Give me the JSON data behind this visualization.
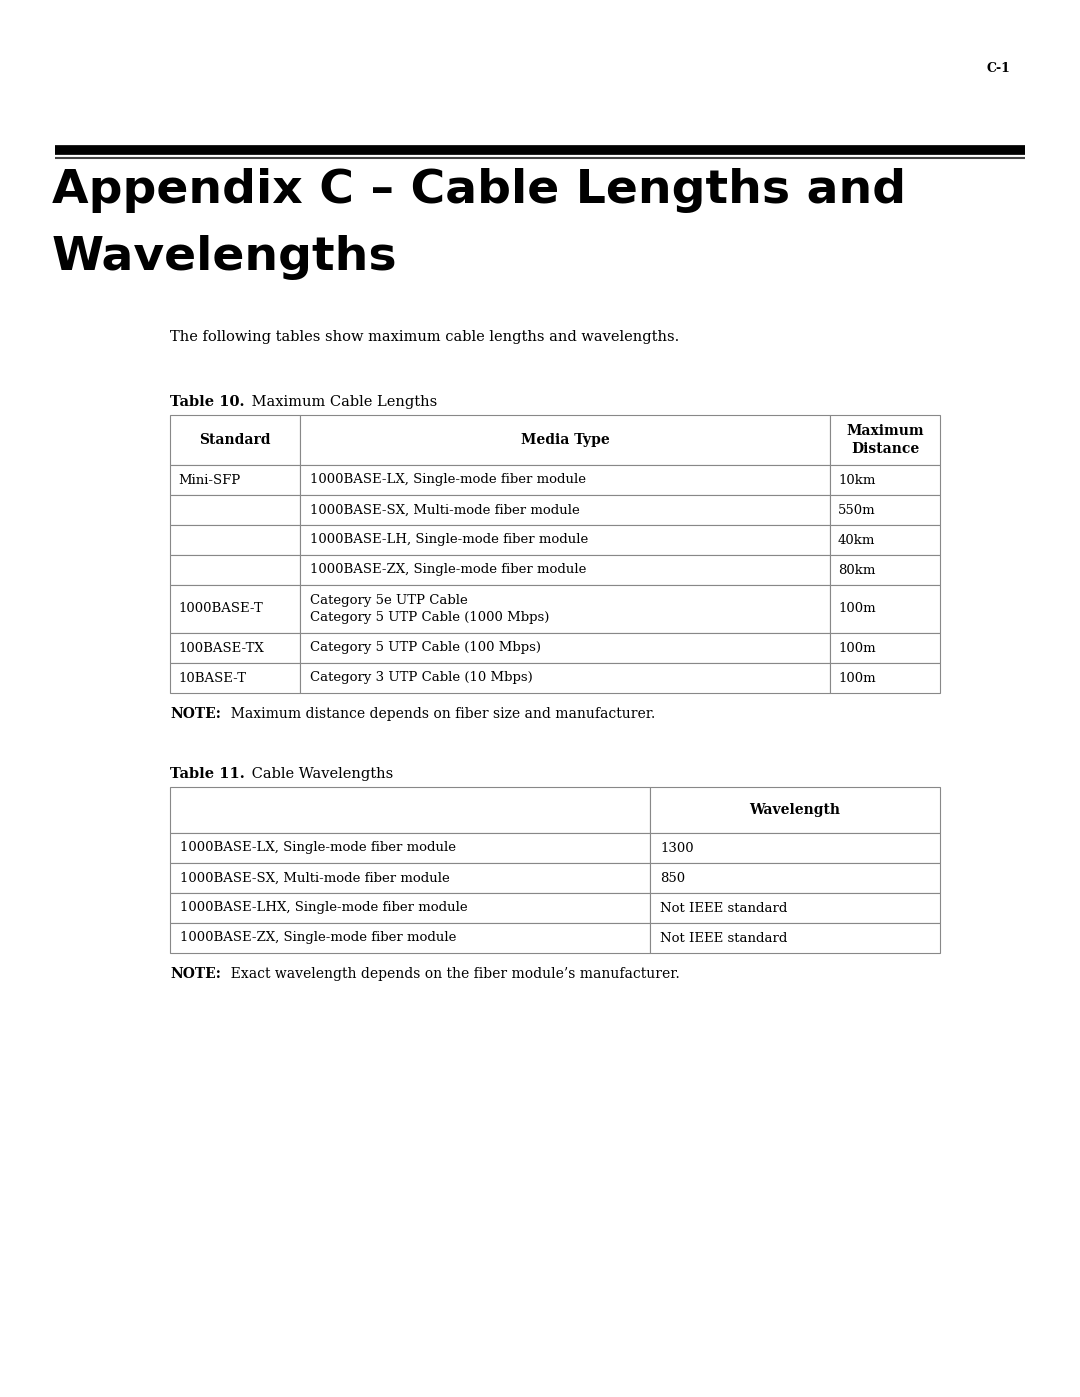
{
  "page_number": "C-1",
  "title_line1": "Appendix C – Cable Lengths and",
  "title_line2": "Wavelengths",
  "intro_text": "The following tables show maximum cable lengths and wavelengths.",
  "table1_title_bold": "Table 10.",
  "table1_title_normal": " Maximum Cable Lengths",
  "table1_col_headers": [
    "Standard",
    "Media Type",
    "Maximum\nDistance"
  ],
  "table1_rows": [
    [
      "Mini-SFP",
      "1000BASE-LX, Single-mode fiber module",
      "10km"
    ],
    [
      "",
      "1000BASE-SX, Multi-mode fiber module",
      "550m"
    ],
    [
      "",
      "1000BASE-LH, Single-mode fiber module",
      "40km"
    ],
    [
      "",
      "1000BASE-ZX, Single-mode fiber module",
      "80km"
    ],
    [
      "1000BASE-T",
      "Category 5e UTP Cable\nCategory 5 UTP Cable (1000 Mbps)",
      "100m"
    ],
    [
      "100BASE-TX",
      "Category 5 UTP Cable (100 Mbps)",
      "100m"
    ],
    [
      "10BASE-T",
      "Category 3 UTP Cable (10 Mbps)",
      "100m"
    ]
  ],
  "table1_row_has_two_lines": [
    false,
    false,
    false,
    false,
    true,
    false,
    false
  ],
  "table1_note_bold": "NOTE:",
  "table1_note_normal": "  Maximum distance depends on fiber size and manufacturer.",
  "table2_title_bold": "Table 11.",
  "table2_title_normal": " Cable Wavelengths",
  "table2_col_headers": [
    "",
    "Wavelength"
  ],
  "table2_rows": [
    [
      "1000BASE-LX, Single-mode fiber module",
      "1300"
    ],
    [
      "1000BASE-SX, Multi-mode fiber module",
      "850"
    ],
    [
      "1000BASE-LHX, Single-mode fiber module",
      "Not IEEE standard"
    ],
    [
      "1000BASE-ZX, Single-mode fiber module",
      "Not IEEE standard"
    ]
  ],
  "table2_note_bold": "NOTE:",
  "table2_note_normal": "  Exact wavelength depends on the fiber module’s manufacturer.",
  "bg_color": "#ffffff"
}
